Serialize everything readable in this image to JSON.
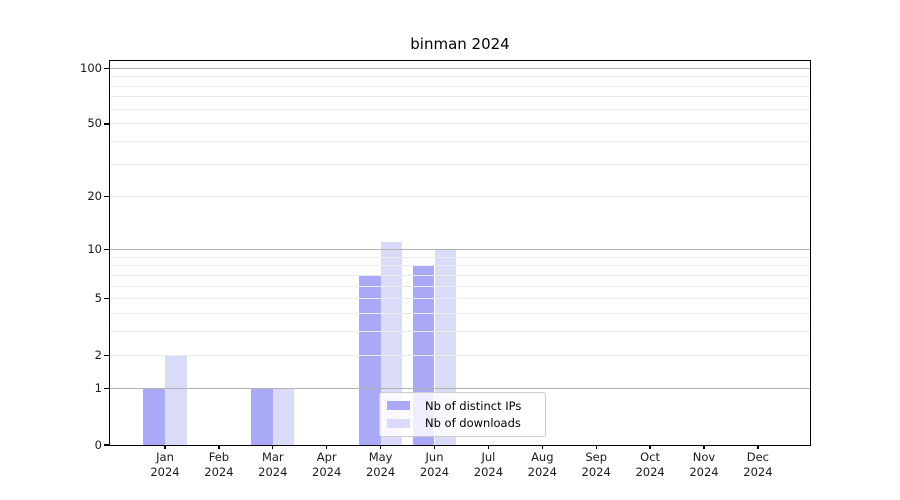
{
  "title": "binman 2024",
  "chart_data": {
    "type": "bar",
    "title": "binman 2024",
    "categories": [
      "Jan 2024",
      "Feb 2024",
      "Mar 2024",
      "Apr 2024",
      "May 2024",
      "Jun 2024",
      "Jul 2024",
      "Aug 2024",
      "Sep 2024",
      "Oct 2024",
      "Nov 2024",
      "Dec 2024"
    ],
    "series": [
      {
        "name": "Nb of distinct IPs",
        "color": "#a9a9f7",
        "values": [
          1,
          0,
          1,
          0,
          7,
          8,
          0,
          0,
          0,
          0,
          0,
          0
        ]
      },
      {
        "name": "Nb of downloads",
        "color": "#dadaf9",
        "values": [
          2,
          0,
          1,
          0,
          11,
          10,
          0,
          0,
          0,
          0,
          0,
          0
        ]
      }
    ],
    "xlabel": "",
    "ylabel": "",
    "y_scale": "log10(1+y)",
    "ylim": [
      0,
      110
    ],
    "y_tick_values": [
      100,
      50,
      20,
      10,
      5,
      2,
      1,
      0
    ],
    "y_major_gridlines": [
      1,
      10,
      100
    ],
    "y_minor_gridlines": [
      2,
      3,
      4,
      5,
      6,
      7,
      8,
      9,
      20,
      30,
      40,
      50,
      60,
      70,
      80,
      90
    ],
    "grid": "on",
    "legend_position": "inside lower center",
    "colors": {
      "spine": "#000000",
      "major_grid": "#b2b2b2",
      "minor_grid": "#ebebeb",
      "text": "#1a1a1a",
      "legend_border": "#cccccc",
      "background": "#ffffff"
    }
  }
}
